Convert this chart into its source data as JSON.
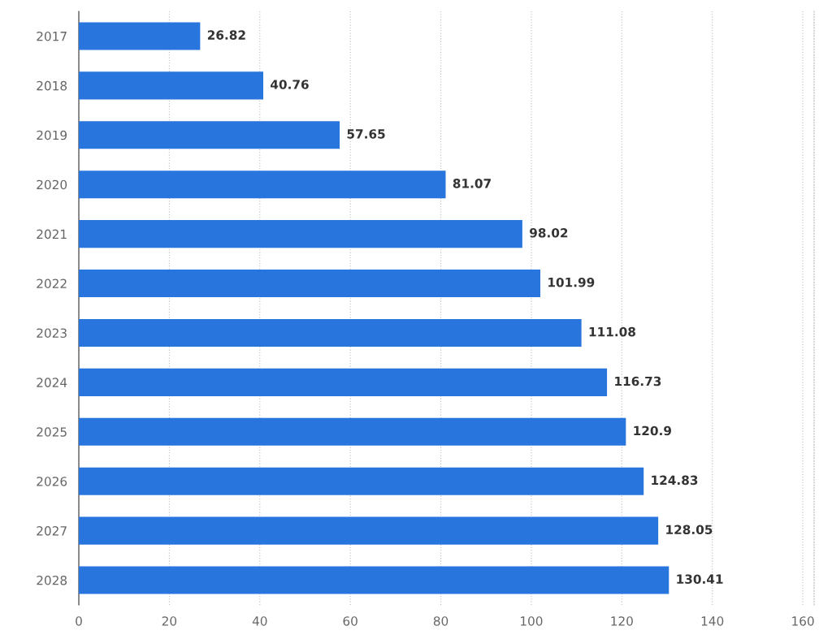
{
  "chart_data": {
    "type": "bar",
    "orientation": "horizontal",
    "categories": [
      "2017",
      "2018",
      "2019",
      "2020",
      "2021",
      "2022",
      "2023",
      "2024",
      "2025",
      "2026",
      "2027",
      "2028"
    ],
    "values": [
      26.82,
      40.76,
      57.65,
      81.07,
      98.02,
      101.99,
      111.08,
      116.73,
      120.9,
      124.83,
      128.05,
      130.41
    ],
    "color": "#2876dd",
    "xlim": [
      0,
      162.5
    ],
    "xticks": [
      0,
      20,
      40,
      60,
      80,
      100,
      120,
      140,
      160
    ],
    "grid": "x",
    "data_labels": true
  }
}
